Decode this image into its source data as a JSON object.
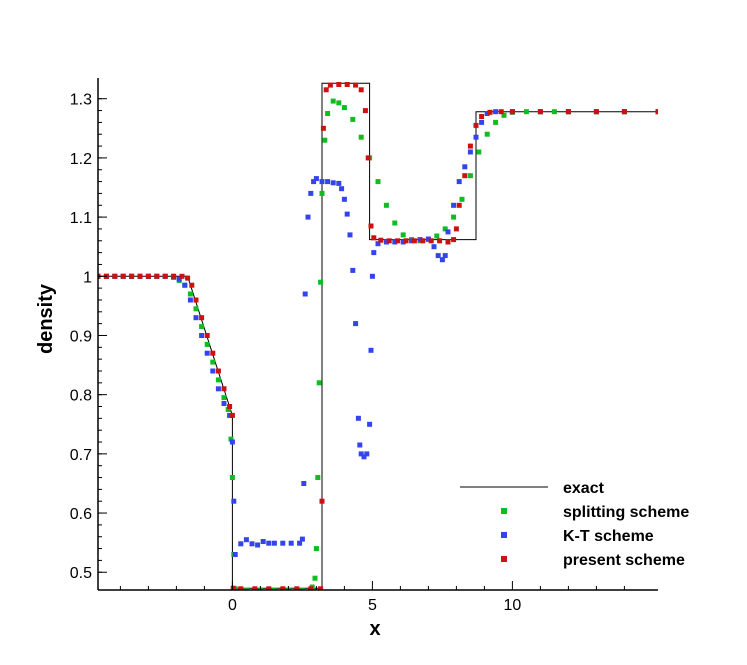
{
  "chart_data": {
    "type": "scatter",
    "xlabel": "x",
    "ylabel": "density",
    "xlim": [
      -4.8,
      15.2
    ],
    "ylim": [
      0.47,
      1.335
    ],
    "x_ticks": [
      0,
      5,
      10
    ],
    "x_tick_labels": [
      "0",
      "5",
      "10"
    ],
    "y_ticks": [
      0.5,
      0.6,
      0.7,
      0.8,
      0.9,
      1.0,
      1.1,
      1.2,
      1.3
    ],
    "y_tick_labels": [
      "0.5",
      "0.6",
      "0.7",
      "0.8",
      "0.9",
      "1",
      "1.1",
      "1.2",
      "1.3"
    ],
    "grid": false,
    "legend_position": "bottom-right",
    "series": [
      {
        "name": "exact",
        "style": "line",
        "color": "#000000",
        "points": [
          [
            -4.8,
            1.0
          ],
          [
            -1.6,
            1.0
          ],
          [
            0.0,
            0.765
          ],
          [
            0.0,
            0.473
          ],
          [
            3.2,
            0.473
          ],
          [
            3.2,
            1.326
          ],
          [
            4.9,
            1.326
          ],
          [
            4.9,
            1.062
          ],
          [
            8.7,
            1.062
          ],
          [
            8.7,
            1.278
          ],
          [
            15.2,
            1.278
          ]
        ]
      },
      {
        "name": "splitting scheme",
        "style": "marker",
        "color": "#11bb22",
        "points": [
          [
            -4.8,
            1.0
          ],
          [
            -4.5,
            1.0
          ],
          [
            -4.2,
            1.0
          ],
          [
            -3.9,
            1.0
          ],
          [
            -3.6,
            1.0
          ],
          [
            -3.3,
            1.0
          ],
          [
            -3.0,
            1.0
          ],
          [
            -2.7,
            1.0
          ],
          [
            -2.4,
            1.0
          ],
          [
            -2.1,
            0.998
          ],
          [
            -1.9,
            0.993
          ],
          [
            -1.7,
            0.985
          ],
          [
            -1.5,
            0.97
          ],
          [
            -1.3,
            0.945
          ],
          [
            -1.1,
            0.915
          ],
          [
            -0.9,
            0.885
          ],
          [
            -0.7,
            0.855
          ],
          [
            -0.5,
            0.825
          ],
          [
            -0.3,
            0.795
          ],
          [
            -0.15,
            0.775
          ],
          [
            -0.05,
            0.725
          ],
          [
            0.0,
            0.66
          ],
          [
            0.05,
            0.53
          ],
          [
            0.1,
            0.472
          ],
          [
            0.5,
            0.469
          ],
          [
            1.0,
            0.469
          ],
          [
            1.5,
            0.469
          ],
          [
            2.0,
            0.469
          ],
          [
            2.5,
            0.469
          ],
          [
            2.85,
            0.475
          ],
          [
            2.95,
            0.49
          ],
          [
            3.0,
            0.54
          ],
          [
            3.05,
            0.66
          ],
          [
            3.1,
            0.82
          ],
          [
            3.15,
            0.99
          ],
          [
            3.2,
            1.14
          ],
          [
            3.3,
            1.23
          ],
          [
            3.4,
            1.275
          ],
          [
            3.6,
            1.296
          ],
          [
            3.8,
            1.293
          ],
          [
            4.0,
            1.285
          ],
          [
            4.3,
            1.265
          ],
          [
            4.6,
            1.235
          ],
          [
            4.9,
            1.2
          ],
          [
            5.2,
            1.16
          ],
          [
            5.5,
            1.12
          ],
          [
            5.8,
            1.09
          ],
          [
            6.1,
            1.07
          ],
          [
            6.4,
            1.062
          ],
          [
            6.7,
            1.06
          ],
          [
            7.0,
            1.062
          ],
          [
            7.3,
            1.068
          ],
          [
            7.6,
            1.08
          ],
          [
            7.9,
            1.1
          ],
          [
            8.2,
            1.13
          ],
          [
            8.5,
            1.17
          ],
          [
            8.8,
            1.21
          ],
          [
            9.1,
            1.24
          ],
          [
            9.4,
            1.26
          ],
          [
            9.7,
            1.272
          ],
          [
            10.0,
            1.277
          ],
          [
            10.5,
            1.278
          ],
          [
            11.0,
            1.278
          ],
          [
            11.5,
            1.278
          ],
          [
            12.0,
            1.278
          ],
          [
            13.0,
            1.278
          ],
          [
            14.0,
            1.278
          ],
          [
            15.2,
            1.278
          ]
        ]
      },
      {
        "name": "K-T scheme",
        "style": "marker",
        "color": "#3344ee",
        "points": [
          [
            -4.8,
            1.0
          ],
          [
            -4.5,
            1.0
          ],
          [
            -4.2,
            1.0
          ],
          [
            -3.9,
            1.0
          ],
          [
            -3.6,
            1.0
          ],
          [
            -3.3,
            1.0
          ],
          [
            -3.0,
            1.0
          ],
          [
            -2.7,
            1.0
          ],
          [
            -2.4,
            1.0
          ],
          [
            -2.1,
            1.0
          ],
          [
            -1.9,
            0.995
          ],
          [
            -1.7,
            0.985
          ],
          [
            -1.5,
            0.96
          ],
          [
            -1.3,
            0.93
          ],
          [
            -1.1,
            0.9
          ],
          [
            -0.9,
            0.87
          ],
          [
            -0.7,
            0.84
          ],
          [
            -0.5,
            0.81
          ],
          [
            -0.3,
            0.785
          ],
          [
            -0.1,
            0.765
          ],
          [
            0.0,
            0.72
          ],
          [
            0.05,
            0.62
          ],
          [
            0.1,
            0.53
          ],
          [
            0.3,
            0.548
          ],
          [
            0.5,
            0.555
          ],
          [
            0.7,
            0.548
          ],
          [
            0.9,
            0.546
          ],
          [
            1.1,
            0.552
          ],
          [
            1.3,
            0.549
          ],
          [
            1.5,
            0.549
          ],
          [
            1.8,
            0.549
          ],
          [
            2.1,
            0.549
          ],
          [
            2.4,
            0.549
          ],
          [
            2.5,
            0.556
          ],
          [
            2.55,
            0.65
          ],
          [
            2.6,
            0.97
          ],
          [
            2.7,
            1.1
          ],
          [
            2.8,
            1.14
          ],
          [
            2.9,
            1.16
          ],
          [
            3.0,
            1.165
          ],
          [
            3.2,
            1.16
          ],
          [
            3.4,
            1.16
          ],
          [
            3.6,
            1.158
          ],
          [
            3.8,
            1.157
          ],
          [
            3.9,
            1.148
          ],
          [
            4.0,
            1.13
          ],
          [
            4.1,
            1.105
          ],
          [
            4.2,
            1.07
          ],
          [
            4.3,
            1.01
          ],
          [
            4.4,
            0.92
          ],
          [
            4.5,
            0.76
          ],
          [
            4.55,
            0.715
          ],
          [
            4.6,
            0.7
          ],
          [
            4.7,
            0.695
          ],
          [
            4.8,
            0.7
          ],
          [
            4.9,
            0.75
          ],
          [
            4.95,
            0.875
          ],
          [
            5.0,
            1.0
          ],
          [
            5.05,
            1.04
          ],
          [
            5.2,
            1.055
          ],
          [
            5.5,
            1.058
          ],
          [
            5.8,
            1.058
          ],
          [
            6.1,
            1.058
          ],
          [
            6.4,
            1.06
          ],
          [
            6.7,
            1.062
          ],
          [
            7.0,
            1.063
          ],
          [
            7.2,
            1.05
          ],
          [
            7.35,
            1.035
          ],
          [
            7.5,
            1.028
          ],
          [
            7.6,
            1.035
          ],
          [
            7.7,
            1.075
          ],
          [
            7.9,
            1.12
          ],
          [
            8.1,
            1.16
          ],
          [
            8.3,
            1.185
          ],
          [
            8.5,
            1.21
          ],
          [
            8.7,
            1.235
          ],
          [
            8.9,
            1.26
          ],
          [
            9.1,
            1.275
          ],
          [
            9.4,
            1.278
          ],
          [
            10.0,
            1.278
          ],
          [
            11.0,
            1.278
          ],
          [
            12.0,
            1.278
          ],
          [
            13.0,
            1.278
          ],
          [
            14.0,
            1.278
          ],
          [
            15.2,
            1.278
          ]
        ]
      },
      {
        "name": "present scheme",
        "style": "marker",
        "color": "#cc1111",
        "points": [
          [
            -4.8,
            1.0
          ],
          [
            -4.5,
            1.0
          ],
          [
            -4.2,
            1.0
          ],
          [
            -3.9,
            1.0
          ],
          [
            -3.6,
            1.0
          ],
          [
            -3.3,
            1.0
          ],
          [
            -3.0,
            1.0
          ],
          [
            -2.7,
            1.0
          ],
          [
            -2.4,
            1.0
          ],
          [
            -2.1,
            1.0
          ],
          [
            -1.8,
            1.0
          ],
          [
            -1.6,
            0.997
          ],
          [
            -1.45,
            0.985
          ],
          [
            -1.3,
            0.96
          ],
          [
            -1.1,
            0.93
          ],
          [
            -0.9,
            0.9
          ],
          [
            -0.7,
            0.87
          ],
          [
            -0.5,
            0.84
          ],
          [
            -0.3,
            0.81
          ],
          [
            -0.1,
            0.78
          ],
          [
            0.0,
            0.765
          ],
          [
            0.03,
            0.473
          ],
          [
            0.3,
            0.472
          ],
          [
            0.8,
            0.472
          ],
          [
            1.3,
            0.472
          ],
          [
            1.8,
            0.472
          ],
          [
            2.3,
            0.472
          ],
          [
            2.8,
            0.472
          ],
          [
            3.15,
            0.472
          ],
          [
            3.2,
            0.62
          ],
          [
            3.25,
            1.25
          ],
          [
            3.35,
            1.315
          ],
          [
            3.5,
            1.323
          ],
          [
            3.8,
            1.324
          ],
          [
            4.1,
            1.324
          ],
          [
            4.4,
            1.323
          ],
          [
            4.6,
            1.315
          ],
          [
            4.75,
            1.28
          ],
          [
            4.85,
            1.2
          ],
          [
            4.95,
            1.085
          ],
          [
            5.05,
            1.065
          ],
          [
            5.3,
            1.061
          ],
          [
            5.6,
            1.06
          ],
          [
            5.9,
            1.06
          ],
          [
            6.2,
            1.06
          ],
          [
            6.5,
            1.06
          ],
          [
            6.8,
            1.06
          ],
          [
            7.1,
            1.06
          ],
          [
            7.4,
            1.06
          ],
          [
            7.7,
            1.058
          ],
          [
            7.9,
            1.062
          ],
          [
            8.0,
            1.08
          ],
          [
            8.1,
            1.12
          ],
          [
            8.3,
            1.17
          ],
          [
            8.5,
            1.22
          ],
          [
            8.7,
            1.255
          ],
          [
            8.9,
            1.27
          ],
          [
            9.2,
            1.277
          ],
          [
            9.6,
            1.278
          ],
          [
            10.0,
            1.278
          ],
          [
            11.0,
            1.278
          ],
          [
            12.0,
            1.278
          ],
          [
            13.0,
            1.278
          ],
          [
            14.0,
            1.278
          ],
          [
            15.2,
            1.278
          ]
        ]
      }
    ]
  }
}
